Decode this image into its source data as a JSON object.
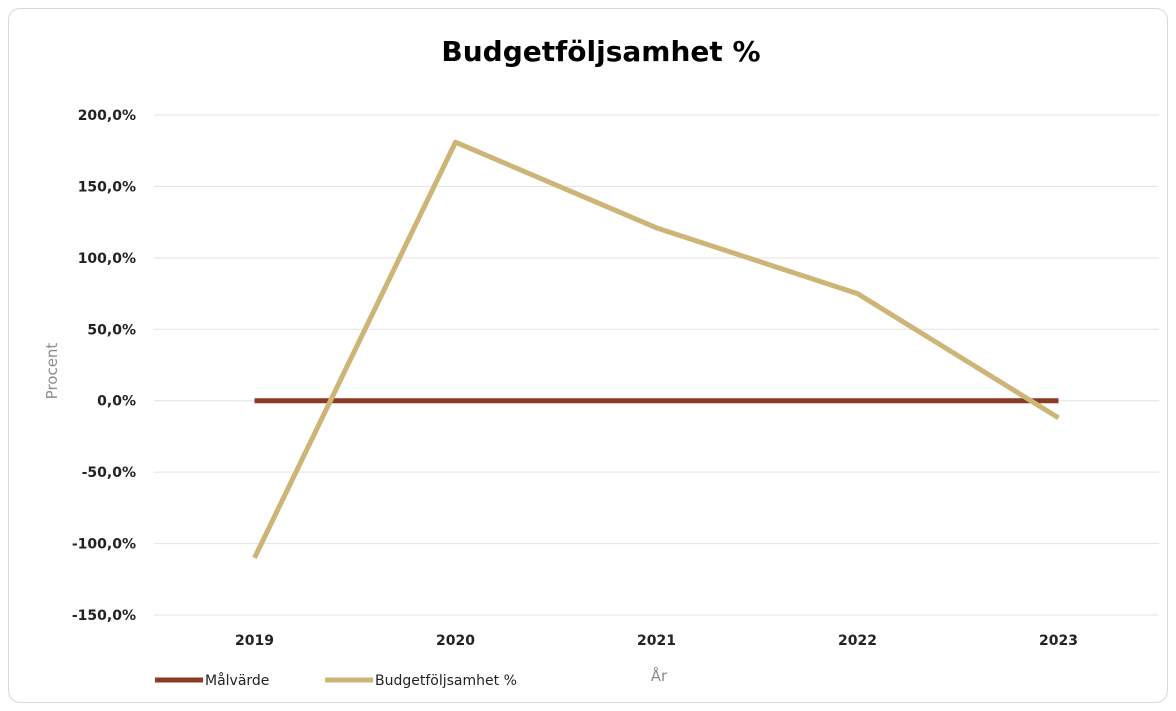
{
  "chart_data": {
    "type": "line",
    "title": "Budgetföljsamhet %",
    "xlabel": "År",
    "ylabel": "Procent",
    "categories": [
      "2019",
      "2020",
      "2021",
      "2022",
      "2023"
    ],
    "ylim": [
      -150,
      200
    ],
    "yticks": [
      200,
      150,
      100,
      50,
      0,
      -50,
      -100,
      -150
    ],
    "ytick_labels": [
      "200,0%",
      "150,0%",
      "100,0%",
      "50,0%",
      "0,0%",
      "-50,0%",
      "-100,0%",
      "-150,0%"
    ],
    "grid": true,
    "legend_position": "bottom-left",
    "series": [
      {
        "name": "Målvärde",
        "color": "#8B3A24",
        "values": [
          0,
          0,
          0,
          0,
          0
        ]
      },
      {
        "name": "Budgetföljsamhet %",
        "color": "#CDB477",
        "values": [
          -110,
          181,
          121,
          75,
          -12
        ]
      }
    ]
  }
}
